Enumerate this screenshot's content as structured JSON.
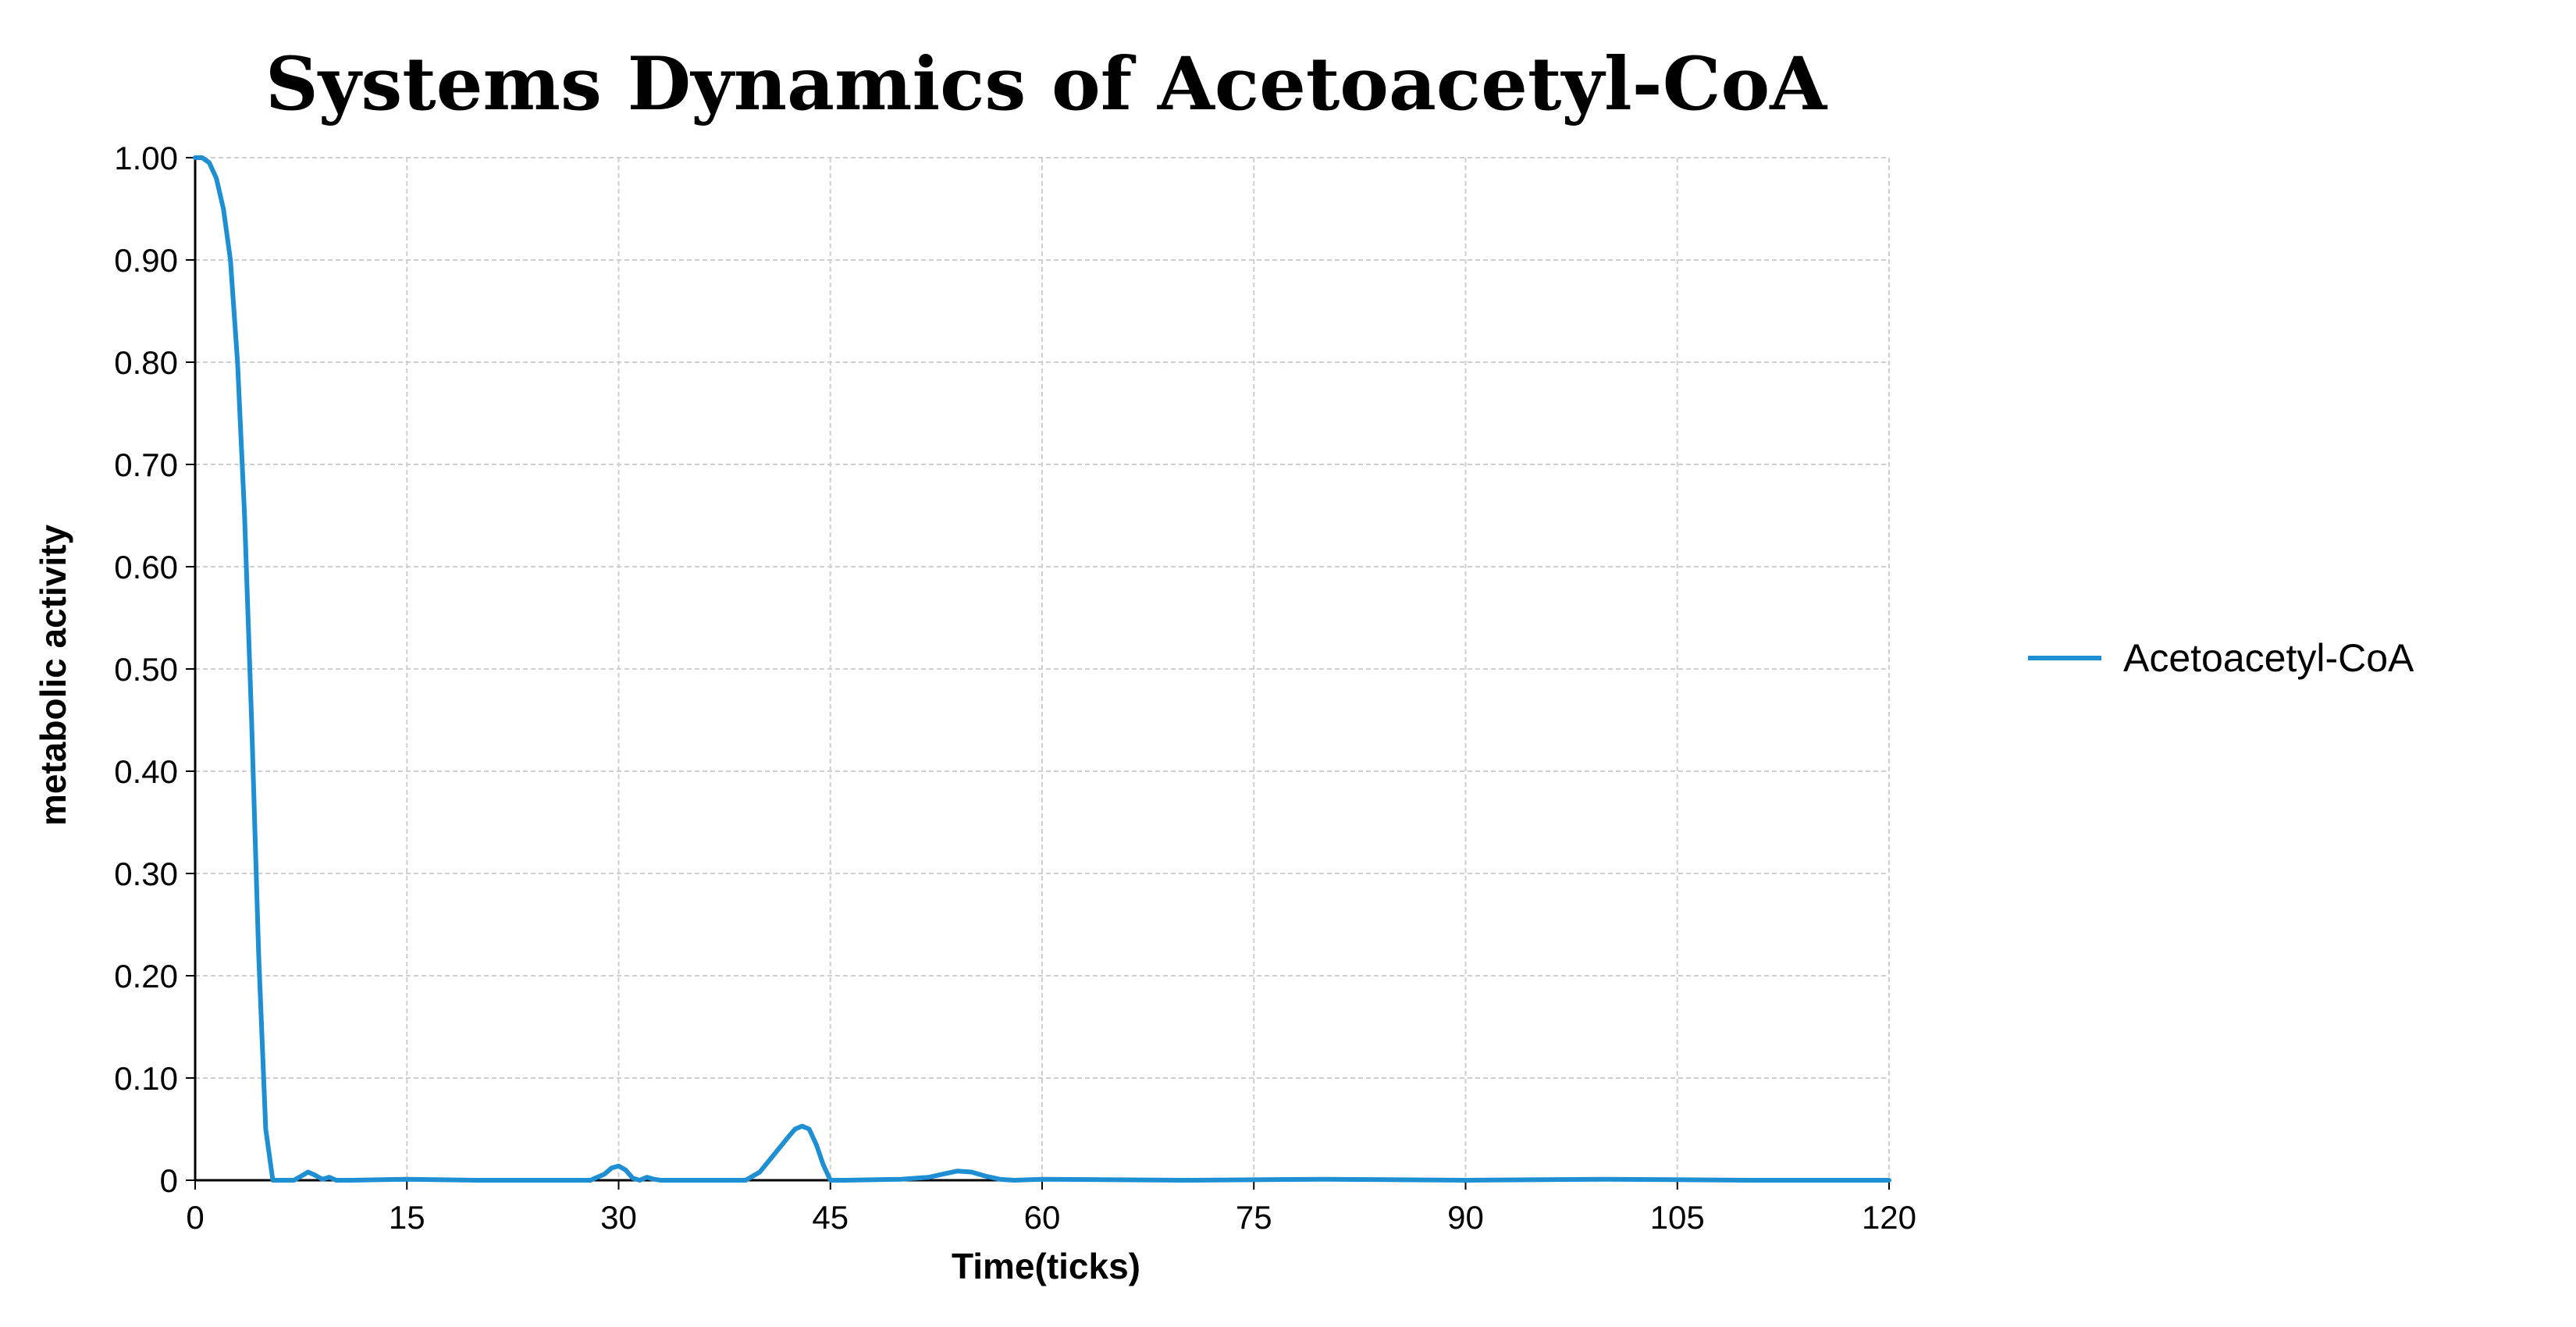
{
  "chart_data": {
    "type": "line",
    "title": "Systems Dynamics of Acetoacetyl-CoA",
    "xlabel": "Time(ticks)",
    "ylabel": "metabolic activity",
    "xlim": [
      0,
      120
    ],
    "ylim": [
      0,
      1.0
    ],
    "x_ticks": [
      "0",
      "15",
      "30",
      "45",
      "60",
      "75",
      "90",
      "105",
      "120"
    ],
    "x_tick_values": [
      0,
      15,
      30,
      45,
      60,
      75,
      90,
      105,
      120
    ],
    "y_ticks": [
      "0",
      "0.10",
      "0.20",
      "0.30",
      "0.40",
      "0.50",
      "0.60",
      "0.70",
      "0.80",
      "0.90",
      "1.00"
    ],
    "y_tick_values": [
      0,
      0.1,
      0.2,
      0.3,
      0.4,
      0.5,
      0.6,
      0.7,
      0.8,
      0.9,
      1.0
    ],
    "grid": true,
    "legend_position": "right",
    "series": [
      {
        "name": "Acetoacetyl-CoA",
        "color": "#1f8fd4",
        "x": [
          0,
          0.5,
          1,
          1.5,
          2,
          2.5,
          3,
          3.5,
          4,
          4.5,
          5,
          5.5,
          6,
          7,
          7.5,
          8,
          8.5,
          9,
          9.5,
          10,
          11,
          15,
          20,
          28,
          29,
          29.5,
          30,
          30.5,
          31,
          31.5,
          32,
          32.5,
          33,
          35,
          39,
          40,
          41,
          42,
          42.5,
          43,
          43.5,
          44,
          44.5,
          45,
          46,
          50,
          52,
          53,
          54,
          55,
          56,
          57,
          58,
          60,
          70,
          80,
          90,
          100,
          110,
          120
        ],
        "y": [
          1.0,
          1.0,
          0.995,
          0.98,
          0.95,
          0.9,
          0.8,
          0.65,
          0.45,
          0.22,
          0.05,
          0,
          0,
          0,
          0.004,
          0.008,
          0.005,
          0.001,
          0.003,
          0,
          0,
          0.001,
          0,
          0,
          0.006,
          0.012,
          0.014,
          0.01,
          0.002,
          0,
          0.003,
          0.001,
          0,
          0,
          0,
          0.008,
          0.025,
          0.042,
          0.05,
          0.053,
          0.05,
          0.035,
          0.015,
          0,
          0,
          0.001,
          0.003,
          0.006,
          0.009,
          0.008,
          0.004,
          0.001,
          0,
          0.001,
          0,
          0.001,
          0,
          0.001,
          0,
          0
        ]
      }
    ]
  }
}
